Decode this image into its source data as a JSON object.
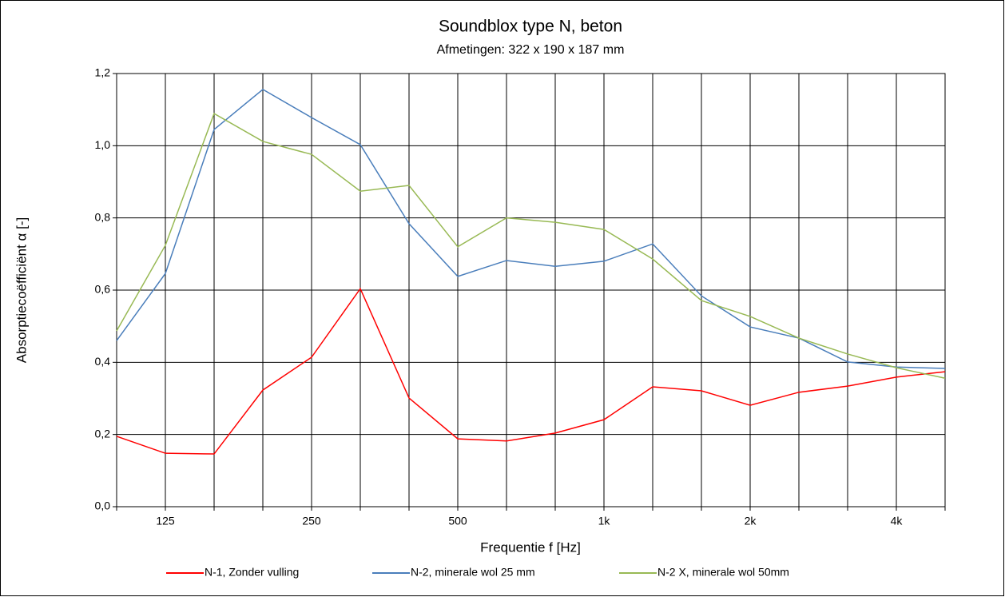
{
  "chart_data": {
    "type": "line",
    "title": "Soundblox type N, beton",
    "subtitle": "Afmetingen: 322 x 190 x 187 mm",
    "x_label": "Frequentie f [Hz]",
    "y_label": "Absorptiecoëfficiënt α [-]",
    "categories": [
      null,
      "125",
      null,
      null,
      "250",
      null,
      null,
      "500",
      null,
      null,
      "1k",
      null,
      null,
      "2k",
      null,
      null,
      "4k",
      null
    ],
    "series": [
      {
        "name": "N-1, Zonder vulling",
        "color": "#ff0000",
        "values": [
          0.195,
          0.148,
          0.146,
          0.323,
          0.414,
          0.604,
          0.301,
          0.188,
          0.182,
          0.204,
          0.241,
          0.332,
          0.321,
          0.281,
          0.317,
          0.334,
          0.359,
          0.374
        ]
      },
      {
        "name": "N-2, minerale wol 25 mm",
        "color": "#4a7ebb",
        "values": [
          0.46,
          0.646,
          1.045,
          1.156,
          1.078,
          1.003,
          0.784,
          0.638,
          0.682,
          0.666,
          0.68,
          0.728,
          0.584,
          0.498,
          0.467,
          0.401,
          0.387,
          0.383
        ]
      },
      {
        "name": "N-2 X, minerale wol 50mm",
        "color": "#98b954",
        "values": [
          0.487,
          0.724,
          1.089,
          1.012,
          0.976,
          0.874,
          0.89,
          0.72,
          0.8,
          0.788,
          0.768,
          0.686,
          0.571,
          0.527,
          0.467,
          0.423,
          0.385,
          0.356
        ]
      }
    ],
    "ylim": [
      0,
      1.2
    ],
    "yticks": [
      {
        "value": 0,
        "label": "0,0"
      },
      {
        "value": 0.2,
        "label": "0,2"
      },
      {
        "value": 0.4,
        "label": "0,4"
      },
      {
        "value": 0.6,
        "label": "0,6"
      },
      {
        "value": 0.8,
        "label": "0,8"
      },
      {
        "value": 1.0,
        "label": "1,0"
      },
      {
        "value": 1.2,
        "label": "1,2"
      }
    ],
    "grid": true,
    "legend": "bottom"
  }
}
